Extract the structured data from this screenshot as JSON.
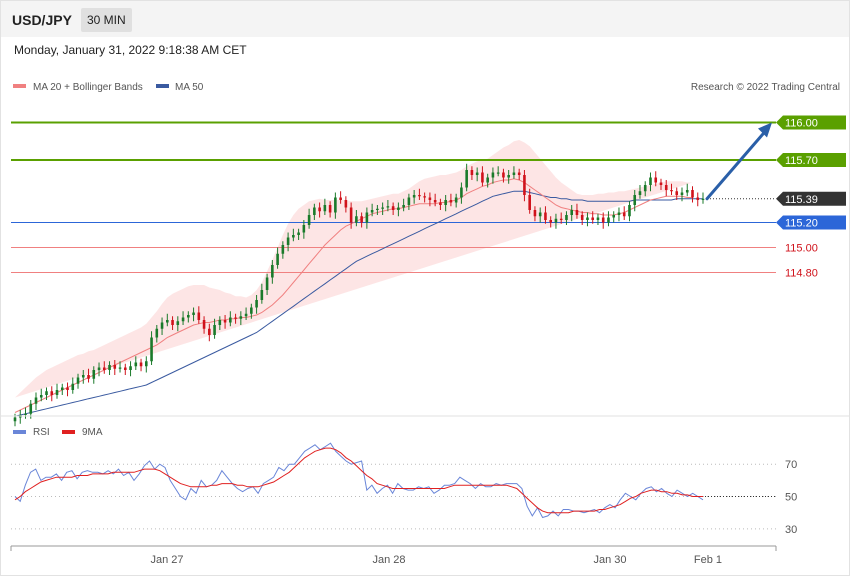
{
  "header": {
    "symbol": "USD/JPY",
    "timeframe": "30 MIN",
    "datetime": "Monday, January 31, 2022 9:18:38 AM CET"
  },
  "legend": {
    "ma20": "MA 20 + Bollinger Bands",
    "ma50": "MA 50",
    "copyright": "Research © 2022 Trading Central"
  },
  "rsi_legend": {
    "rsi": "RSI",
    "ma": "9MA"
  },
  "colors": {
    "up": "#1a7a2a",
    "down": "#d0121b",
    "ma20": "#f08080",
    "ma50": "#3a5aa0",
    "band": "#fde0e0",
    "resistance": "#5aa000",
    "support_blue": "#2c66d8",
    "support_red": "#f08080",
    "current": "#333333",
    "rsi": "#6a86d8",
    "rsi_ma": "#e02020",
    "arrow": "#2a5fa8"
  },
  "chart_data": [
    {
      "type": "candlestick",
      "title": "USD/JPY",
      "timeframe": "30 MIN",
      "x_ticks": [
        "Jan 27",
        "Jan 28",
        "Jan 30",
        "Feb 1"
      ],
      "ylim": [
        113.62,
        116.22
      ],
      "levels": [
        {
          "value": 116.0,
          "label": "116.00",
          "kind": "resistance"
        },
        {
          "value": 115.7,
          "label": "115.70",
          "kind": "resistance"
        },
        {
          "value": 115.39,
          "label": "115.39",
          "kind": "current"
        },
        {
          "value": 115.2,
          "label": "115.20",
          "kind": "support"
        },
        {
          "value": 115.0,
          "label": "115.00",
          "kind": "support-minor"
        },
        {
          "value": 114.8,
          "label": "114.80",
          "kind": "support-minor"
        }
      ],
      "forecast_arrow": {
        "from": 115.39,
        "to": 116.0
      },
      "closes": [
        113.64,
        113.66,
        113.67,
        113.75,
        113.8,
        113.82,
        113.85,
        113.82,
        113.86,
        113.88,
        113.86,
        113.91,
        113.96,
        113.98,
        113.95,
        114.02,
        114.04,
        114.02,
        114.06,
        114.03,
        114.04,
        114.02,
        114.05,
        114.08,
        114.05,
        114.09,
        114.28,
        114.35,
        114.4,
        114.42,
        114.38,
        114.41,
        114.44,
        114.46,
        114.48,
        114.42,
        114.35,
        114.3,
        114.38,
        114.42,
        114.4,
        114.44,
        114.43,
        114.45,
        114.47,
        114.52,
        114.58,
        114.66,
        114.76,
        114.86,
        114.95,
        115.02,
        115.08,
        115.1,
        115.12,
        115.18,
        115.26,
        115.32,
        115.29,
        115.34,
        115.28,
        115.4,
        115.38,
        115.32,
        115.2,
        115.25,
        115.2,
        115.28,
        115.3,
        115.31,
        115.32,
        115.33,
        115.3,
        115.32,
        115.34,
        115.4,
        115.42,
        115.41,
        115.4,
        115.38,
        115.36,
        115.34,
        115.38,
        115.36,
        115.4,
        115.48,
        115.62,
        115.58,
        115.6,
        115.52,
        115.56,
        115.6,
        115.6,
        115.56,
        115.58,
        115.6,
        115.58,
        115.42,
        115.3,
        115.25,
        115.28,
        115.22,
        115.2,
        115.23,
        115.22,
        115.26,
        115.3,
        115.26,
        115.22,
        115.24,
        115.22,
        115.24,
        115.2,
        115.24,
        115.26,
        115.28,
        115.25,
        115.34,
        115.42,
        115.45,
        115.5,
        115.56,
        115.52,
        115.5,
        115.46,
        115.45,
        115.42,
        115.44,
        115.46,
        115.4,
        115.38,
        115.39
      ],
      "ma20": [
        113.68,
        113.7,
        113.72,
        113.74,
        113.76,
        113.78,
        113.8,
        113.82,
        113.84,
        113.86,
        113.88,
        113.9,
        113.92,
        113.94,
        113.96,
        113.98,
        114.0,
        114.02,
        114.04,
        114.06,
        114.08,
        114.1,
        114.12,
        114.14,
        114.16,
        114.18,
        114.2,
        114.22,
        114.25,
        114.28,
        114.3,
        114.32,
        114.34,
        114.36,
        114.38,
        114.39,
        114.4,
        114.4,
        114.41,
        114.42,
        114.42,
        114.43,
        114.43,
        114.44,
        114.44,
        114.45,
        114.46,
        114.48,
        114.51,
        114.54,
        114.58,
        114.62,
        114.67,
        114.72,
        114.77,
        114.82,
        114.87,
        114.92,
        114.97,
        115.02,
        115.06,
        115.1,
        115.14,
        115.17,
        115.19,
        115.21,
        115.23,
        115.25,
        115.27,
        115.28,
        115.29,
        115.3,
        115.31,
        115.31,
        115.32,
        115.33,
        115.34,
        115.35,
        115.35,
        115.35,
        115.35,
        115.36,
        115.36,
        115.37,
        115.38,
        115.4,
        115.43,
        115.45,
        115.47,
        115.49,
        115.5,
        115.52,
        115.53,
        115.54,
        115.54,
        115.55,
        115.54,
        115.52,
        115.49,
        115.46,
        115.43,
        115.4,
        115.37,
        115.34,
        115.32,
        115.31,
        115.3,
        115.29,
        115.28,
        115.28,
        115.27,
        115.27,
        115.26,
        115.26,
        115.26,
        115.27,
        115.28,
        115.3,
        115.32,
        115.34,
        115.36,
        115.38,
        115.39,
        115.4,
        115.41,
        115.41,
        115.41,
        115.41,
        115.4,
        115.4
      ],
      "ma50": [
        113.65,
        113.66,
        113.67,
        113.68,
        113.69,
        113.7,
        113.71,
        113.72,
        113.73,
        113.74,
        113.75,
        113.76,
        113.77,
        113.78,
        113.79,
        113.8,
        113.81,
        113.82,
        113.83,
        113.84,
        113.85,
        113.86,
        113.87,
        113.88,
        113.89,
        113.9,
        113.92,
        113.94,
        113.96,
        113.98,
        114.0,
        114.02,
        114.04,
        114.06,
        114.08,
        114.1,
        114.12,
        114.14,
        114.16,
        114.18,
        114.2,
        114.22,
        114.24,
        114.26,
        114.28,
        114.3,
        114.32,
        114.35,
        114.38,
        114.41,
        114.44,
        114.47,
        114.5,
        114.53,
        114.56,
        114.59,
        114.62,
        114.65,
        114.68,
        114.71,
        114.74,
        114.77,
        114.8,
        114.83,
        114.86,
        114.89,
        114.91,
        114.93,
        114.95,
        114.97,
        114.99,
        115.01,
        115.03,
        115.05,
        115.07,
        115.09,
        115.11,
        115.13,
        115.15,
        115.17,
        115.19,
        115.21,
        115.23,
        115.25,
        115.27,
        115.29,
        115.31,
        115.33,
        115.35,
        115.37,
        115.39,
        115.41,
        115.42,
        115.43,
        115.44,
        115.45,
        115.45,
        115.45,
        115.44,
        115.43,
        115.42,
        115.41,
        115.4,
        115.4,
        115.39,
        115.39,
        115.38,
        115.38,
        115.38,
        115.37,
        115.37,
        115.37,
        115.37,
        115.37,
        115.37,
        115.37,
        115.37,
        115.37,
        115.38,
        115.38,
        115.38,
        115.38,
        115.38,
        115.38,
        115.38,
        115.38,
        115.39,
        115.39,
        115.39,
        115.39,
        115.39,
        115.39
      ],
      "band_width": [
        0.12,
        0.14,
        0.16,
        0.18,
        0.2,
        0.21,
        0.22,
        0.22,
        0.22,
        0.22,
        0.22,
        0.22,
        0.22,
        0.21,
        0.21,
        0.2,
        0.2,
        0.2,
        0.2,
        0.2,
        0.2,
        0.2,
        0.2,
        0.2,
        0.2,
        0.21,
        0.24,
        0.27,
        0.3,
        0.32,
        0.33,
        0.33,
        0.33,
        0.33,
        0.32,
        0.31,
        0.3,
        0.28,
        0.26,
        0.24,
        0.22,
        0.2,
        0.18,
        0.17,
        0.16,
        0.17,
        0.2,
        0.24,
        0.3,
        0.36,
        0.42,
        0.48,
        0.52,
        0.54,
        0.54,
        0.52,
        0.5,
        0.46,
        0.42,
        0.36,
        0.32,
        0.28,
        0.24,
        0.21,
        0.18,
        0.16,
        0.14,
        0.13,
        0.12,
        0.12,
        0.12,
        0.12,
        0.12,
        0.12,
        0.13,
        0.14,
        0.16,
        0.18,
        0.2,
        0.21,
        0.22,
        0.22,
        0.22,
        0.22,
        0.22,
        0.22,
        0.22,
        0.22,
        0.22,
        0.21,
        0.21,
        0.22,
        0.24,
        0.26,
        0.28,
        0.3,
        0.32,
        0.32,
        0.32,
        0.3,
        0.28,
        0.26,
        0.24,
        0.22,
        0.2,
        0.18,
        0.16,
        0.14,
        0.14,
        0.14,
        0.15,
        0.16,
        0.17,
        0.18,
        0.18,
        0.18,
        0.17,
        0.16,
        0.15,
        0.14,
        0.13,
        0.12,
        0.12,
        0.12,
        0.12,
        0.12,
        0.12,
        0.12,
        0.12,
        0.12
      ]
    },
    {
      "type": "line",
      "title": "RSI",
      "ylim": [
        20,
        85
      ],
      "y_ticks": [
        70,
        50,
        30
      ],
      "series": [
        {
          "name": "RSI",
          "values": [
            50,
            47,
            57,
            65,
            67,
            60,
            62,
            62,
            64,
            60,
            65,
            66,
            61,
            65,
            66,
            65,
            65,
            64,
            66,
            64,
            67,
            63,
            65,
            60,
            64,
            69,
            72,
            67,
            70,
            68,
            60,
            55,
            50,
            48,
            55,
            52,
            60,
            56,
            57,
            60,
            66,
            62,
            58,
            55,
            53,
            55,
            56,
            52,
            58,
            60,
            62,
            68,
            66,
            70,
            70,
            74,
            78,
            80,
            82,
            79,
            81,
            83,
            78,
            75,
            72,
            70,
            71,
            72,
            54,
            57,
            52,
            55,
            57,
            52,
            58,
            55,
            54,
            54,
            56,
            55,
            56,
            52,
            54,
            57,
            57,
            58,
            62,
            60,
            58,
            55,
            58,
            56,
            56,
            58,
            57,
            58,
            58,
            58,
            55,
            44,
            38,
            43,
            37,
            38,
            41,
            38,
            42,
            42,
            41,
            41,
            40,
            41,
            42,
            40,
            43,
            45,
            43,
            48,
            52,
            50,
            48,
            52,
            55,
            56,
            53,
            55,
            52,
            50,
            54,
            52,
            50,
            52,
            50,
            48
          ]
        },
        {
          "name": "9MA",
          "values": [
            48,
            50,
            53,
            55,
            57,
            59,
            60,
            61,
            62,
            62,
            62,
            62,
            63,
            63,
            63,
            64,
            64,
            64,
            64,
            65,
            65,
            65,
            65,
            65,
            66,
            67,
            67,
            67,
            66,
            64,
            62,
            60,
            58,
            57,
            56,
            56,
            56,
            56,
            57,
            57,
            58,
            58,
            58,
            57,
            57,
            56,
            56,
            56,
            57,
            58,
            59,
            61,
            63,
            65,
            68,
            71,
            74,
            76,
            78,
            79,
            80,
            80,
            79,
            77,
            74,
            72,
            69,
            66,
            63,
            61,
            58,
            57,
            56,
            55,
            55,
            55,
            55,
            55,
            55,
            55,
            55,
            55,
            55,
            55,
            56,
            57,
            57,
            57,
            57,
            57,
            57,
            57,
            57,
            57,
            57,
            57,
            56,
            55,
            52,
            49,
            46,
            43,
            41,
            40,
            40,
            40,
            40,
            40,
            41,
            41,
            41,
            41,
            41,
            42,
            42,
            43,
            44,
            45,
            47,
            49,
            50,
            52,
            53,
            54,
            54,
            53,
            53,
            52,
            52,
            51,
            51,
            50,
            50,
            50
          ]
        }
      ]
    }
  ]
}
